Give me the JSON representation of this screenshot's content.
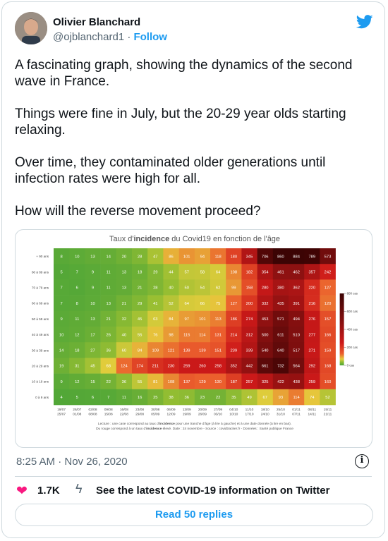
{
  "author": {
    "name": "Olivier Blanchard",
    "handle": "@ojblanchard1",
    "separator": "·",
    "follow": "Follow"
  },
  "icons": {
    "bird": "twitter-bird-icon",
    "heart": "heart-icon",
    "bolt": "covid-info-icon",
    "info": "info-icon"
  },
  "colors": {
    "accent": "#1d9bf0",
    "heart": "#f91880"
  },
  "tweet": {
    "paragraphs": [
      "A fascinating graph, showing the dynamics of the second wave in France.",
      "Things were fine in July, but the 20-29 year olds starting relaxing.",
      "Over time, they contaminated older generations until infection rates were high for all.",
      "How will the reverse movement proceed?"
    ]
  },
  "meta": {
    "timestamp": "8:25 AM · Nov 26, 2020",
    "info_glyph": "i"
  },
  "actions": {
    "likes": "1.7K",
    "covid_link": "See the latest COVID-19 information on Twitter",
    "read_replies": "Read 50 replies"
  },
  "chart_data": {
    "type": "heatmap",
    "title_parts": [
      "Taux d'",
      "incidence",
      " du Covid19 en fonction de l'âge"
    ],
    "rows": [
      "+ 90 ans",
      "80 à 89 ans",
      "70 à 79 ans",
      "60 à 69 ans",
      "50 à 59 ans",
      "40 à 49 ans",
      "30 à 39 ans",
      "20 à 29 ans",
      "10 à 19 ans",
      "0 à 9 ans"
    ],
    "columns": [
      [
        "19/07",
        "25/07"
      ],
      [
        "26/07",
        "01/08"
      ],
      [
        "02/08",
        "08/08"
      ],
      [
        "09/08",
        "15/08"
      ],
      [
        "16/08",
        "22/08"
      ],
      [
        "23/08",
        "29/08"
      ],
      [
        "30/08",
        "05/09"
      ],
      [
        "06/09",
        "12/09"
      ],
      [
        "13/09",
        "19/09"
      ],
      [
        "20/09",
        "26/09"
      ],
      [
        "27/09",
        "03/10"
      ],
      [
        "04/10",
        "10/10"
      ],
      [
        "11/10",
        "17/10"
      ],
      [
        "18/10",
        "24/10"
      ],
      [
        "25/10",
        "31/10"
      ],
      [
        "01/11",
        "07/11"
      ],
      [
        "08/11",
        "14/11"
      ],
      [
        "15/11",
        "21/11"
      ]
    ],
    "values": [
      [
        8,
        10,
        13,
        14,
        20,
        28,
        47,
        86,
        101,
        94,
        118,
        180,
        345,
        706,
        860,
        884,
        789,
        573
      ],
      [
        5,
        7,
        9,
        11,
        13,
        18,
        29,
        44,
        57,
        58,
        64,
        108,
        182,
        354,
        461,
        462,
        357,
        242
      ],
      [
        7,
        6,
        9,
        11,
        13,
        21,
        28,
        40,
        50,
        54,
        62,
        99,
        158,
        280,
        380,
        362,
        220,
        127
      ],
      [
        7,
        8,
        10,
        13,
        21,
        29,
        41,
        52,
        64,
        66,
        75,
        127,
        200,
        332,
        435,
        391,
        216,
        120
      ],
      [
        9,
        11,
        13,
        21,
        32,
        45,
        63,
        84,
        97,
        101,
        113,
        186,
        274,
        453,
        571,
        494,
        276,
        157
      ],
      [
        10,
        12,
        17,
        26,
        40,
        55,
        76,
        98,
        115,
        114,
        131,
        214,
        312,
        500,
        611,
        510,
        277,
        166
      ],
      [
        14,
        18,
        27,
        36,
        60,
        84,
        109,
        121,
        139,
        139,
        151,
        239,
        339,
        540,
        640,
        517,
        271,
        159
      ],
      [
        19,
        31,
        45,
        68,
        124,
        174,
        211,
        230,
        259,
        260,
        258,
        352,
        442,
        661,
        732,
        564,
        292,
        168
      ],
      [
        9,
        12,
        15,
        22,
        36,
        55,
        81,
        108,
        137,
        129,
        130,
        187,
        257,
        325,
        422,
        438,
        259,
        160
      ],
      [
        4,
        5,
        6,
        7,
        11,
        16,
        25,
        38,
        36,
        23,
        22,
        35,
        49,
        67,
        93,
        114,
        74,
        52
      ]
    ],
    "legend": {
      "ticks": [
        "800 cas",
        "600 cas",
        "400 cas",
        "200 cas",
        "0 cas"
      ],
      "max": 800
    },
    "footnote_lines": [
      [
        "Lecture : une case correspond au taux d'",
        "incidence",
        " pour une tranche d'âge (à lire à gauche) et à une date donnée (à lire en bas)."
      ],
      [
        "Du rouge correspond à un taux d'",
        "incidence",
        " élevé. Date : 24 novembre - Source : covidtracker.fr - Données : Santé publique France"
      ]
    ]
  }
}
